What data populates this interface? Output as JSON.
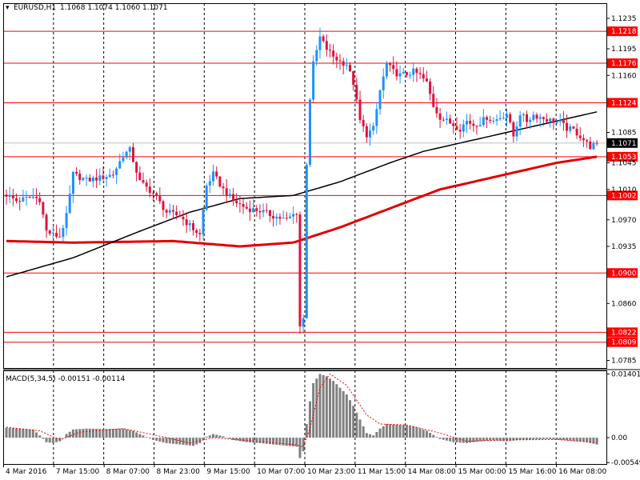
{
  "header": {
    "symbol": "EURUSD,H1",
    "ohlc": "1.1068 1.1074 1.1060 1.1071"
  },
  "macd_label": "MACD(5,34,5) -0.00151 -0.00114",
  "colors": {
    "bull": "#1e90ff",
    "bear": "#dc143c",
    "level": "#ff0000",
    "ma_fast": "#000000",
    "ma_slow": "#e10000",
    "macd_hist": "#808080",
    "macd_signal": "#ff0000",
    "current_price": "#000000"
  },
  "chart_data": {
    "type": "candlestick",
    "y_range": [
      1.0775,
      1.1255
    ],
    "price_ticks": [
      "1.1235",
      "1.1195",
      "1.1160",
      "1.1085",
      "1.1045",
      "1.1010",
      "1.0970",
      "1.0935",
      "1.0860",
      "1.0785"
    ],
    "levels": [
      {
        "price": 1.1218,
        "label": "1.1218"
      },
      {
        "price": 1.1176,
        "label": "1.1176"
      },
      {
        "price": 1.1124,
        "label": "1.1124"
      },
      {
        "price": 1.1053,
        "label": "1.1053"
      },
      {
        "price": 1.1002,
        "label": "1.1002"
      },
      {
        "price": 1.09,
        "label": "1.0900"
      },
      {
        "price": 1.0822,
        "label": "1.0822"
      },
      {
        "price": 1.0809,
        "label": "1.0809"
      }
    ],
    "current_price": {
      "price": 1.1071,
      "label": "1.1071"
    },
    "time_labels": [
      "4 Mar 2016",
      "7 Mar 15:00",
      "8 Mar 07:00",
      "8 Mar 23:00",
      "9 Mar 15:00",
      "10 Mar 07:00",
      "10 Mar 23:00",
      "11 Mar 15:00",
      "14 Mar 08:00",
      "15 Mar 00:00",
      "15 Mar 16:00",
      "16 Mar 08:00"
    ],
    "price_path": [
      [
        0,
        1.1003
      ],
      [
        3,
        1.0995
      ],
      [
        6,
        1.0998
      ],
      [
        8,
        1.1
      ],
      [
        10,
        1.0997
      ],
      [
        12,
        1.0955
      ],
      [
        14,
        1.095
      ],
      [
        16,
        1.0948
      ],
      [
        18,
        1.0975
      ],
      [
        20,
        1.103
      ],
      [
        24,
        1.1022
      ],
      [
        28,
        1.1025
      ],
      [
        32,
        1.103
      ],
      [
        35,
        1.1055
      ],
      [
        37,
        1.1062
      ],
      [
        40,
        1.102
      ],
      [
        44,
        1.1005
      ],
      [
        48,
        1.098
      ],
      [
        52,
        1.0975
      ],
      [
        56,
        1.0958
      ],
      [
        58,
        1.095
      ],
      [
        60,
        1.1015
      ],
      [
        62,
        1.103
      ],
      [
        65,
        1.101
      ],
      [
        68,
        1.0995
      ],
      [
        72,
        1.0985
      ],
      [
        76,
        1.0982
      ],
      [
        80,
        1.0975
      ],
      [
        84,
        1.097
      ],
      [
        87,
        1.098
      ],
      [
        88,
        1.083
      ],
      [
        89,
        1.084
      ],
      [
        90,
        1.1045
      ],
      [
        91,
        1.113
      ],
      [
        92,
        1.1175
      ],
      [
        94,
        1.121
      ],
      [
        96,
        1.1195
      ],
      [
        98,
        1.1185
      ],
      [
        100,
        1.1178
      ],
      [
        102,
        1.1175
      ],
      [
        104,
        1.115
      ],
      [
        106,
        1.11
      ],
      [
        108,
        1.1082
      ],
      [
        110,
        1.109
      ],
      [
        112,
        1.114
      ],
      [
        114,
        1.1175
      ],
      [
        116,
        1.1165
      ],
      [
        118,
        1.116
      ],
      [
        120,
        1.1162
      ],
      [
        122,
        1.1165
      ],
      [
        124,
        1.116
      ],
      [
        126,
        1.115
      ],
      [
        128,
        1.112
      ],
      [
        130,
        1.1105
      ],
      [
        132,
        1.11
      ],
      [
        134,
        1.1095
      ],
      [
        136,
        1.109
      ],
      [
        138,
        1.11
      ],
      [
        140,
        1.1095
      ],
      [
        142,
        1.1098
      ],
      [
        144,
        1.1105
      ],
      [
        146,
        1.11
      ],
      [
        148,
        1.1105
      ],
      [
        150,
        1.111
      ],
      [
        152,
        1.108
      ],
      [
        154,
        1.111
      ],
      [
        156,
        1.11
      ],
      [
        158,
        1.1108
      ],
      [
        160,
        1.1105
      ],
      [
        162,
        1.1102
      ],
      [
        164,
        1.11
      ],
      [
        166,
        1.1098
      ],
      [
        168,
        1.109
      ],
      [
        170,
        1.1088
      ],
      [
        172,
        1.108
      ],
      [
        175,
        1.1066
      ],
      [
        177,
        1.1071
      ]
    ],
    "ma_fast": [
      [
        0,
        1.0895
      ],
      [
        20,
        1.092
      ],
      [
        40,
        1.0955
      ],
      [
        55,
        1.098
      ],
      [
        70,
        1.0998
      ],
      [
        86,
        1.1002
      ],
      [
        100,
        1.102
      ],
      [
        115,
        1.1045
      ],
      [
        125,
        1.106
      ],
      [
        140,
        1.1075
      ],
      [
        155,
        1.109
      ],
      [
        165,
        1.11
      ],
      [
        177,
        1.1112
      ]
    ],
    "ma_slow": [
      [
        0,
        1.0942
      ],
      [
        20,
        1.094
      ],
      [
        50,
        1.0942
      ],
      [
        70,
        1.0935
      ],
      [
        86,
        1.094
      ],
      [
        100,
        1.096
      ],
      [
        115,
        1.0985
      ],
      [
        130,
        1.101
      ],
      [
        150,
        1.103
      ],
      [
        165,
        1.1045
      ],
      [
        177,
        1.1053
      ]
    ],
    "macd": {
      "y_range": [
        -0.0058,
        0.0148
      ],
      "ticks": [
        "0.01401",
        "0.00",
        "-0.00549"
      ],
      "hist": [
        [
          0,
          0.0022
        ],
        [
          4,
          0.002
        ],
        [
          8,
          0.0018
        ],
        [
          10,
          0.0005
        ],
        [
          12,
          -0.001
        ],
        [
          14,
          -0.0012
        ],
        [
          16,
          -0.0008
        ],
        [
          18,
          0.0008
        ],
        [
          20,
          0.0018
        ],
        [
          24,
          0.002
        ],
        [
          30,
          0.0019
        ],
        [
          35,
          0.002
        ],
        [
          38,
          0.0015
        ],
        [
          40,
          0.0008
        ],
        [
          44,
          -0.0005
        ],
        [
          48,
          -0.0012
        ],
        [
          52,
          -0.0015
        ],
        [
          56,
          -0.0018
        ],
        [
          58,
          -0.0012
        ],
        [
          60,
          0.0002
        ],
        [
          62,
          0.0008
        ],
        [
          65,
          0.0003
        ],
        [
          68,
          -0.0005
        ],
        [
          72,
          -0.001
        ],
        [
          76,
          -0.0012
        ],
        [
          80,
          -0.0015
        ],
        [
          84,
          -0.0018
        ],
        [
          87,
          -0.002
        ],
        [
          88,
          -0.0045
        ],
        [
          89,
          -0.003
        ],
        [
          90,
          0.003
        ],
        [
          91,
          0.008
        ],
        [
          92,
          0.012
        ],
        [
          94,
          0.014
        ],
        [
          96,
          0.0135
        ],
        [
          98,
          0.0125
        ],
        [
          100,
          0.011
        ],
        [
          102,
          0.0095
        ],
        [
          104,
          0.007
        ],
        [
          106,
          0.004
        ],
        [
          108,
          0.001
        ],
        [
          110,
          0.0005
        ],
        [
          112,
          0.002
        ],
        [
          114,
          0.003
        ],
        [
          118,
          0.0028
        ],
        [
          122,
          0.0025
        ],
        [
          126,
          0.0015
        ],
        [
          130,
          -0.0003
        ],
        [
          134,
          -0.001
        ],
        [
          138,
          -0.0012
        ],
        [
          142,
          -0.0008
        ],
        [
          146,
          -0.0006
        ],
        [
          150,
          -0.0008
        ],
        [
          154,
          -0.0005
        ],
        [
          158,
          -0.0004
        ],
        [
          162,
          -0.0003
        ],
        [
          166,
          -0.0005
        ],
        [
          170,
          -0.0007
        ],
        [
          174,
          -0.001
        ],
        [
          177,
          -0.0015
        ]
      ],
      "signal": [
        [
          0,
          0.0023
        ],
        [
          10,
          0.0015
        ],
        [
          16,
          -0.0005
        ],
        [
          22,
          0.0012
        ],
        [
          35,
          0.002
        ],
        [
          45,
          0.0005
        ],
        [
          55,
          -0.0012
        ],
        [
          62,
          0.0
        ],
        [
          75,
          -0.0008
        ],
        [
          86,
          -0.0015
        ],
        [
          89,
          -0.002
        ],
        [
          91,
          0.002
        ],
        [
          94,
          0.011
        ],
        [
          97,
          0.014
        ],
        [
          102,
          0.0115
        ],
        [
          108,
          0.005
        ],
        [
          112,
          0.003
        ],
        [
          120,
          0.0028
        ],
        [
          130,
          0.001
        ],
        [
          138,
          -0.0008
        ],
        [
          150,
          -0.0005
        ],
        [
          165,
          -0.0004
        ],
        [
          177,
          -0.0011
        ]
      ]
    }
  }
}
